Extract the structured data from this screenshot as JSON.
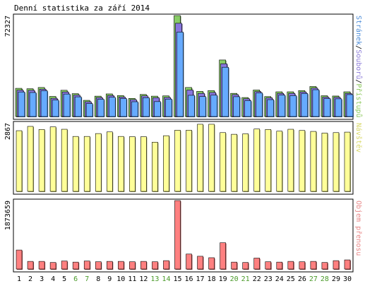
{
  "chart_data": {
    "type": "bar",
    "title": "Denní statistika za září 2014",
    "categories": [
      "1",
      "2",
      "3",
      "4",
      "5",
      "6",
      "7",
      "8",
      "9",
      "10",
      "11",
      "12",
      "13",
      "14",
      "15",
      "16",
      "17",
      "18",
      "19",
      "20",
      "21",
      "22",
      "23",
      "24",
      "25",
      "26",
      "27",
      "28",
      "29",
      "30"
    ],
    "weekend_days": [
      "6",
      "7",
      "13",
      "14",
      "20",
      "21",
      "27",
      "28"
    ],
    "panels": [
      {
        "ymax_label": "72327",
        "ylim": [
          0,
          72327
        ],
        "legend": [
          {
            "name": "Stránek",
            "color": "#4c8cd8"
          },
          {
            "sep": "/"
          },
          {
            "name": "Souborů",
            "color": "#8c7cd8"
          },
          {
            "sep": "/"
          },
          {
            "name": "Přístupů",
            "color": "#8cc85c"
          }
        ],
        "series": [
          {
            "name": "Přístupů",
            "color": "#88cc66",
            "values": [
              20200,
              19900,
              20800,
              14400,
              18800,
              16400,
              11600,
              14600,
              16200,
              15000,
              13000,
              15800,
              14600,
              14800,
              72327,
              20800,
              18000,
              18600,
              40500,
              16600,
              13600,
              19000,
              14300,
              17700,
              17700,
              18600,
              21500,
              14900,
              14700,
              17700
            ]
          },
          {
            "name": "Souborů",
            "color": "#8877dd",
            "values": [
              18900,
              18800,
              19600,
              13100,
              17600,
              15400,
              10600,
              13600,
              15100,
              14000,
              12100,
              14800,
              13500,
              13700,
              66800,
              19000,
              16600,
              17200,
              37800,
              15700,
              12700,
              17900,
              13400,
              16600,
              16600,
              17600,
              20400,
              13900,
              13800,
              16600
            ]
          },
          {
            "name": "Stránek",
            "color": "#66aaff",
            "values": [
              17600,
              17200,
              18500,
              11800,
              16100,
              14100,
              9300,
              12400,
              13800,
              12900,
              10600,
              13500,
              10700,
              12500,
              60500,
              15200,
              14300,
              15300,
              35300,
              14200,
              11400,
              16900,
              12100,
              15400,
              15000,
              16500,
              19200,
              12900,
              12700,
              15700
            ]
          }
        ]
      },
      {
        "ymax_label": "2867",
        "ylim": [
          0,
          2867
        ],
        "legend": [
          {
            "name": "Návštěv",
            "color": "#d8d868"
          }
        ],
        "series": [
          {
            "name": "Návštěv",
            "color": "#ffff99",
            "values": [
              2540,
              2720,
              2590,
              2700,
              2600,
              2300,
              2300,
              2420,
              2490,
              2300,
              2290,
              2290,
              2060,
              2330,
              2560,
              2560,
              2810,
              2810,
              2460,
              2390,
              2410,
              2610,
              2590,
              2520,
              2600,
              2550,
              2510,
              2440,
              2460,
              2480
            ]
          }
        ]
      },
      {
        "ymax_label": "1873659",
        "ylim": [
          0,
          1873659
        ],
        "legend": [
          {
            "name": "Objem přenosu",
            "color": "#e88888"
          }
        ],
        "series": [
          {
            "name": "Objem přenosu",
            "color": "#ff8080",
            "values": [
              520000,
              210000,
              210000,
              180000,
              220000,
              190000,
              220000,
              200000,
              210000,
              210000,
              200000,
              210000,
              200000,
              230000,
              1873659,
              410000,
              350000,
              310000,
              720000,
              190000,
              180000,
              300000,
              200000,
              190000,
              210000,
              200000,
              210000,
              180000,
              230000,
              250000
            ]
          }
        ]
      }
    ]
  }
}
